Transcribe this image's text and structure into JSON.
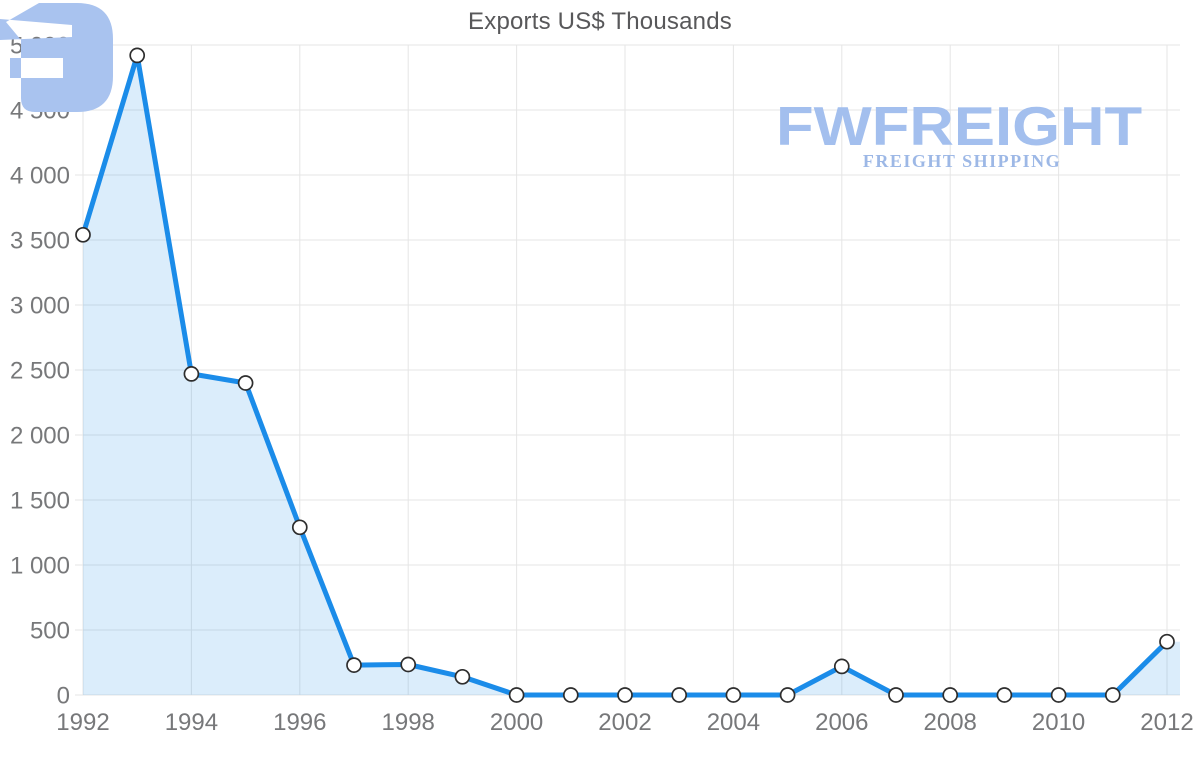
{
  "title": "Exports US$ Thousands",
  "watermark": {
    "brand": "FWFREIGHT",
    "tagline": "FREIGHT SHIPPING",
    "mark_color": "#a9c3ef",
    "brand_color": "#a3bfee",
    "tagline_color": "#9db8e6"
  },
  "chart_data": {
    "type": "area",
    "title": "Exports US$ Thousands",
    "xlabel": "",
    "ylabel": "",
    "x": [
      1992,
      1993,
      1994,
      1995,
      1996,
      1997,
      1998,
      1999,
      2000,
      2001,
      2002,
      2003,
      2004,
      2005,
      2006,
      2007,
      2008,
      2009,
      2010,
      2011,
      2012
    ],
    "values": [
      3540,
      4920,
      2470,
      2400,
      1290,
      230,
      235,
      140,
      0,
      0,
      0,
      0,
      0,
      0,
      220,
      0,
      0,
      0,
      0,
      0,
      410
    ],
    "ylim": [
      0,
      5000
    ],
    "ytick_step": 500,
    "xtick_step": 2,
    "grid": true,
    "legend": "none",
    "colors": {
      "line": "#1b8ce9",
      "fill": "rgba(30,140,232,0.16)",
      "marker_fill": "#ffffff",
      "marker_stroke": "#2e2e2e",
      "grid": "#e5e5e5",
      "tick_label": "#77787a",
      "title": "#58585a"
    }
  }
}
